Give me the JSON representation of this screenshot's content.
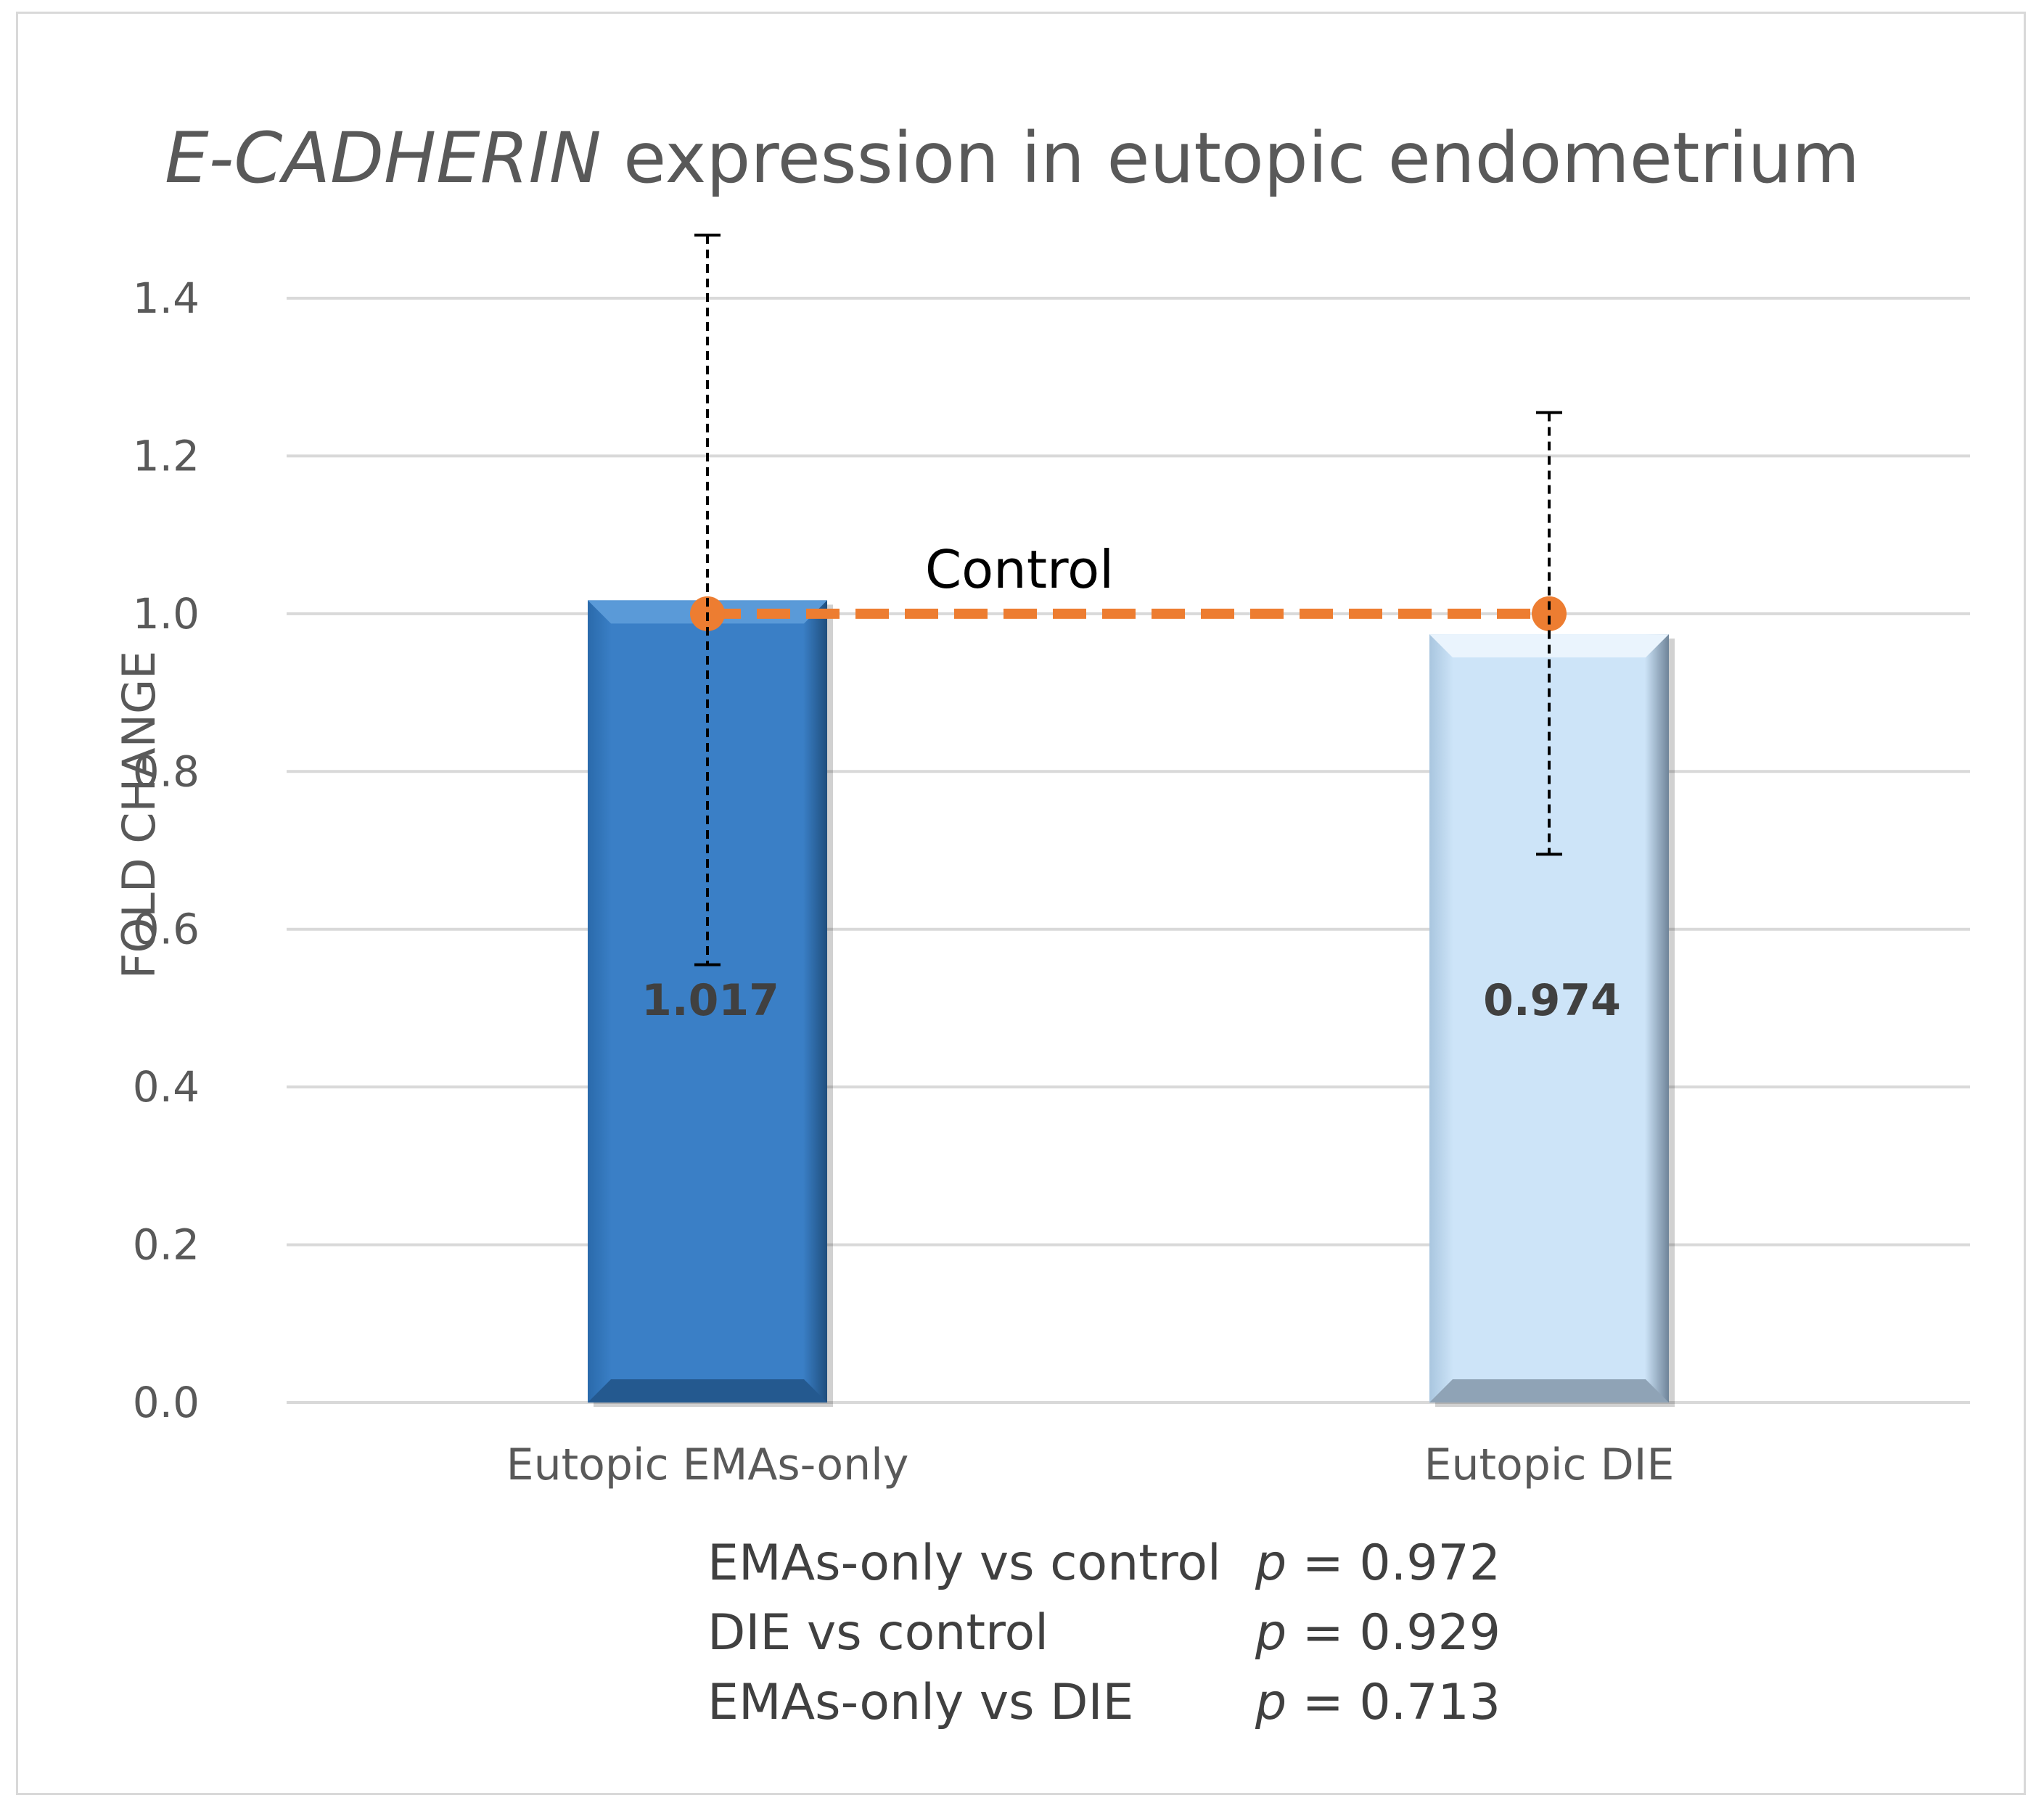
{
  "chart_data": {
    "type": "bar",
    "title_italic": "E-CADHERIN",
    "title_rest": " expression in eutopic endometrium",
    "ylabel": "FOLD CHANGE",
    "xlabel": "",
    "ylim": [
      0,
      1.4
    ],
    "yticks": [
      "0.0",
      "0.2",
      "0.4",
      "0.6",
      "0.8",
      "1.0",
      "1.2",
      "1.4"
    ],
    "ytick_values": [
      0,
      0.2,
      0.4,
      0.6,
      0.8,
      1.0,
      1.2,
      1.4
    ],
    "grid": true,
    "categories": [
      "Eutopic EMAs-only",
      "Eutopic DIE"
    ],
    "values": [
      1.017,
      0.974
    ],
    "value_labels": [
      "1.017",
      "0.974"
    ],
    "error_low": [
      0.555,
      0.695
    ],
    "error_high": [
      1.48,
      1.255
    ],
    "colors": [
      "#3a7fc6",
      "#cde4f8"
    ],
    "control": {
      "label": "Control",
      "value": 1.0,
      "color": "#ed7d31"
    },
    "stats": [
      {
        "comparison": "EMAs-only vs control",
        "p_label": "p",
        "p_value": " = 0.972"
      },
      {
        "comparison": "DIE vs control",
        "p_label": "p",
        "p_value": " = 0.929"
      },
      {
        "comparison": "EMAs-only vs DIE",
        "p_label": "p",
        "p_value": " = 0.713"
      }
    ]
  }
}
